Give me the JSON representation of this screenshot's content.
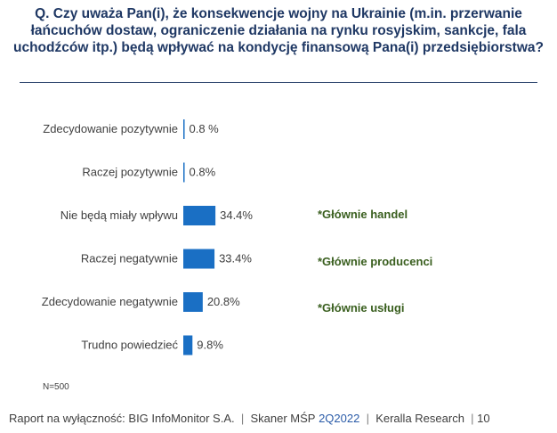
{
  "title": "Q. Czy uważa Pan(i), że konsekwencje wojny na Ukrainie (m.in. przerwanie łańcuchów dostaw, ograniczenie działania na rynku rosyjskim, sankcje, fala uchodźców itp.) będą wpływać na kondycję finansową Pana(i) przedsiębiorstwa?",
  "colors": {
    "bar": "#1a6fc4",
    "title": "#1f3864",
    "note": "#3a5f1f"
  },
  "chart_data": {
    "type": "bar",
    "orientation": "horizontal",
    "categories": [
      "Zdecydowanie pozytywnie",
      "Raczej pozytywnie",
      "Nie będą miały wpływu",
      "Raczej negatywnie",
      "Zdecydowanie negatywnie",
      "Trudno powiedzieć"
    ],
    "values": [
      0.8,
      0.8,
      34.4,
      33.4,
      20.8,
      9.8
    ],
    "value_labels": [
      "0.8 %",
      "0.8%",
      "34.4%",
      "33.4%",
      "20.8%",
      "9.8%"
    ],
    "xlim": [
      0,
      100
    ],
    "grid": false,
    "legend": "none"
  },
  "notes": [
    "*Głównie handel",
    "*Głównie producenci",
    "*Głównie usługi"
  ],
  "sample_size": "N=500",
  "footer": {
    "report": "Raport na wyłączność: BIG InfoMonitor S.A.",
    "sep1": "|",
    "scanner": "Skaner MŚP",
    "period": "2Q2022",
    "sep2": "|",
    "partner": "Keralla Research",
    "sep3": "|",
    "page": "10"
  }
}
